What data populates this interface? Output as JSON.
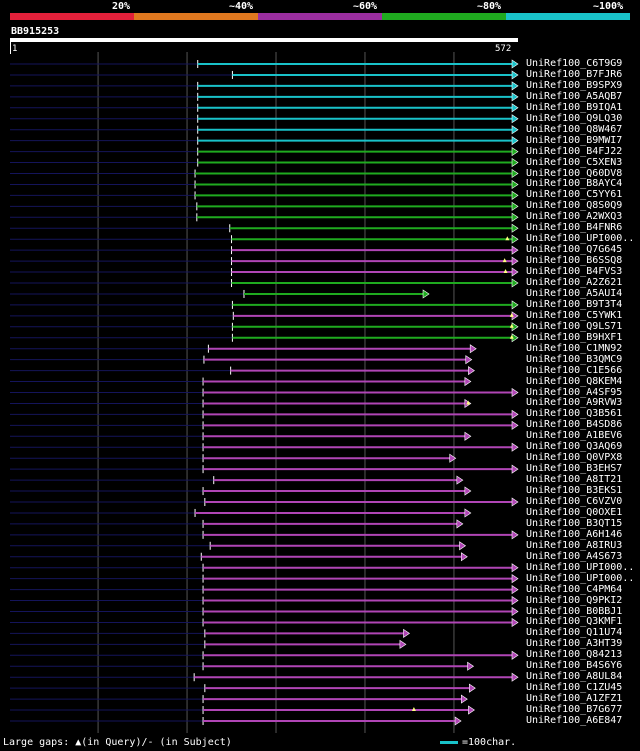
{
  "query": {
    "name": "BB915253",
    "start": "1",
    "end": "572",
    "length": 572
  },
  "legend": [
    {
      "label": "20%",
      "color": "#e2203a"
    },
    {
      "label": "~40%",
      "color": "#e0781f"
    },
    {
      "label": "~60%",
      "color": "#9b2ea0"
    },
    {
      "label": "~80%",
      "color": "#1faa1f"
    },
    {
      "label": "~100%",
      "color": "#19c2c9"
    }
  ],
  "colors": {
    "cyan": "#19c2c9",
    "green": "#1faa1f",
    "magenta": "#b045b5",
    "track": "#0a0a3a",
    "grid": "#555555"
  },
  "hits": [
    {
      "name": "UniRef100_C6T9G9",
      "color": "cyan",
      "start": 212,
      "end": 572
    },
    {
      "name": "UniRef100_B7FJR6",
      "color": "cyan",
      "start": 251,
      "end": 572
    },
    {
      "name": "UniRef100_B9SPX9",
      "color": "cyan",
      "start": 212,
      "end": 572
    },
    {
      "name": "UniRef100_A5AQB7",
      "color": "cyan",
      "start": 212,
      "end": 572
    },
    {
      "name": "UniRef100_B9IQA1",
      "color": "cyan",
      "start": 212,
      "end": 572
    },
    {
      "name": "UniRef100_Q9LQ30",
      "color": "cyan",
      "start": 212,
      "end": 572
    },
    {
      "name": "UniRef100_Q8W467",
      "color": "cyan",
      "start": 212,
      "end": 572
    },
    {
      "name": "UniRef100_B9MWI7",
      "color": "cyan",
      "start": 212,
      "end": 572
    },
    {
      "name": "UniRef100_B4FJ22",
      "color": "green",
      "start": 212,
      "end": 572
    },
    {
      "name": "UniRef100_C5XEN3",
      "color": "green",
      "start": 212,
      "end": 572
    },
    {
      "name": "UniRef100_Q60DV8",
      "color": "green",
      "start": 209,
      "end": 572
    },
    {
      "name": "UniRef100_B8AYC4",
      "color": "green",
      "start": 209,
      "end": 572
    },
    {
      "name": "UniRef100_C5YY61",
      "color": "green",
      "start": 209,
      "end": 572
    },
    {
      "name": "UniRef100_Q8S0Q9",
      "color": "green",
      "start": 211,
      "end": 572
    },
    {
      "name": "UniRef100_A2WXQ3",
      "color": "green",
      "start": 211,
      "end": 572
    },
    {
      "name": "UniRef100_B4FNR6",
      "color": "green",
      "start": 248,
      "end": 572
    },
    {
      "name": "UniRef100_UPI000..",
      "color": "green",
      "start": 250,
      "end": 572,
      "gap": 560
    },
    {
      "name": "UniRef100_Q7G645",
      "color": "magenta",
      "start": 250,
      "end": 572
    },
    {
      "name": "UniRef100_B6SSQ8",
      "color": "magenta",
      "start": 250,
      "end": 572,
      "gap": 557
    },
    {
      "name": "UniRef100_B4FVS3",
      "color": "magenta",
      "start": 250,
      "end": 572,
      "gap": 558
    },
    {
      "name": "UniRef100_A2Z621",
      "color": "green",
      "start": 250,
      "end": 572
    },
    {
      "name": "UniRef100_A5AUI4",
      "color": "green",
      "start": 264,
      "end": 472
    },
    {
      "name": "UniRef100_B9T3T4",
      "color": "green",
      "start": 251,
      "end": 572
    },
    {
      "name": "UniRef100_C5YWK1",
      "color": "magenta",
      "start": 252,
      "end": 572,
      "gap": 565
    },
    {
      "name": "UniRef100_Q9LS71",
      "color": "green",
      "start": 251,
      "end": 572,
      "gap": 565
    },
    {
      "name": "UniRef100_B9HXF1",
      "color": "green",
      "start": 251,
      "end": 572,
      "gap": 565
    },
    {
      "name": "UniRef100_C1MN92",
      "color": "magenta",
      "start": 224,
      "end": 525
    },
    {
      "name": "UniRef100_B3QMC9",
      "color": "magenta",
      "start": 219,
      "end": 520
    },
    {
      "name": "UniRef100_C1E566",
      "color": "magenta",
      "start": 249,
      "end": 523
    },
    {
      "name": "UniRef100_Q8KEM4",
      "color": "magenta",
      "start": 218,
      "end": 519
    },
    {
      "name": "UniRef100_A4SF95",
      "color": "magenta",
      "start": 218,
      "end": 572
    },
    {
      "name": "UniRef100_A9RVW3",
      "color": "magenta",
      "start": 218,
      "end": 519,
      "gap": 516
    },
    {
      "name": "UniRef100_Q3B561",
      "color": "magenta",
      "start": 218,
      "end": 572
    },
    {
      "name": "UniRef100_B4SD86",
      "color": "magenta",
      "start": 218,
      "end": 572
    },
    {
      "name": "UniRef100_A1BEV6",
      "color": "magenta",
      "start": 218,
      "end": 519
    },
    {
      "name": "UniRef100_Q3AQ69",
      "color": "magenta",
      "start": 218,
      "end": 572
    },
    {
      "name": "UniRef100_Q0VPX8",
      "color": "magenta",
      "start": 218,
      "end": 502
    },
    {
      "name": "UniRef100_B3EHS7",
      "color": "magenta",
      "start": 218,
      "end": 572
    },
    {
      "name": "UniRef100_A8IT21",
      "color": "magenta",
      "start": 230,
      "end": 510
    },
    {
      "name": "UniRef100_B3EKS1",
      "color": "magenta",
      "start": 218,
      "end": 519
    },
    {
      "name": "UniRef100_C6VZV0",
      "color": "magenta",
      "start": 220,
      "end": 572
    },
    {
      "name": "UniRef100_Q0OXE1",
      "color": "magenta",
      "start": 209,
      "end": 519
    },
    {
      "name": "UniRef100_B3QT15",
      "color": "magenta",
      "start": 218,
      "end": 510
    },
    {
      "name": "UniRef100_A6H146",
      "color": "magenta",
      "start": 218,
      "end": 572
    },
    {
      "name": "UniRef100_A8IRU3",
      "color": "magenta",
      "start": 226,
      "end": 513
    },
    {
      "name": "UniRef100_A4S673",
      "color": "magenta",
      "start": 216,
      "end": 515
    },
    {
      "name": "UniRef100_UPI000..",
      "color": "magenta",
      "start": 218,
      "end": 572
    },
    {
      "name": "UniRef100_UPI000..",
      "color": "magenta",
      "start": 218,
      "end": 572
    },
    {
      "name": "UniRef100_C4PM64",
      "color": "magenta",
      "start": 218,
      "end": 572
    },
    {
      "name": "UniRef100_Q9PKI2",
      "color": "magenta",
      "start": 218,
      "end": 572
    },
    {
      "name": "UniRef100_B0BBJ1",
      "color": "magenta",
      "start": 218,
      "end": 572
    },
    {
      "name": "UniRef100_Q3KMF1",
      "color": "magenta",
      "start": 218,
      "end": 572
    },
    {
      "name": "UniRef100_Q11U74",
      "color": "magenta",
      "start": 220,
      "end": 450
    },
    {
      "name": "UniRef100_A3HT39",
      "color": "magenta",
      "start": 220,
      "end": 446
    },
    {
      "name": "UniRef100_Q84213",
      "color": "magenta",
      "start": 218,
      "end": 572
    },
    {
      "name": "UniRef100_B4S6Y6",
      "color": "magenta",
      "start": 218,
      "end": 522
    },
    {
      "name": "UniRef100_A8UL84",
      "color": "magenta",
      "start": 208,
      "end": 572
    },
    {
      "name": "UniRef100_C1ZU45",
      "color": "magenta",
      "start": 220,
      "end": 524
    },
    {
      "name": "UniRef100_A1ZFZ1",
      "color": "magenta",
      "start": 218,
      "end": 515
    },
    {
      "name": "UniRef100_B7G677",
      "color": "magenta",
      "start": 218,
      "end": 523,
      "gap": 455
    },
    {
      "name": "UniRef100_A6E847",
      "color": "magenta",
      "start": 218,
      "end": 508
    }
  ],
  "footer": {
    "gaps": "Large gaps: ▲(in Query)/‐ (in Subject)",
    "scale": "=100char."
  }
}
